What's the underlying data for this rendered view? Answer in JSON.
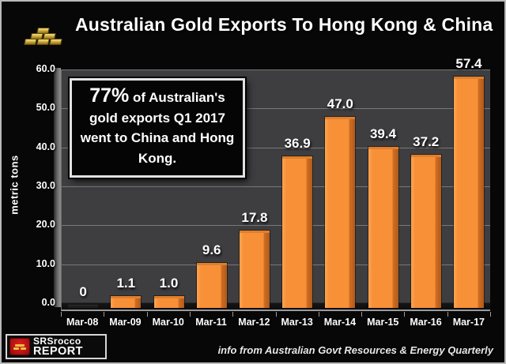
{
  "header": {
    "title": "Australian Gold Exports To Hong Kong & China"
  },
  "annotation": {
    "lead": "77%",
    "rest": " of Australian's gold exports Q1 2017 went to China and Hong Kong."
  },
  "chart_data": {
    "type": "bar",
    "title": "Australian Gold Exports To Hong Kong & China",
    "categories": [
      "Mar-08",
      "Mar-09",
      "Mar-10",
      "Mar-11",
      "Mar-12",
      "Mar-13",
      "Mar-14",
      "Mar-15",
      "Mar-16",
      "Mar-17"
    ],
    "values": [
      0,
      1.1,
      1.0,
      9.6,
      17.8,
      36.9,
      47.0,
      39.4,
      37.2,
      57.4
    ],
    "value_labels": [
      "0",
      "1.1",
      "1.0",
      "9.6",
      "17.8",
      "36.9",
      "47.0",
      "39.4",
      "37.2",
      "57.4"
    ],
    "xlabel": "",
    "ylabel": "metric tons",
    "ylim": [
      0,
      60
    ],
    "ytick_step": 10,
    "ytick_labels": [
      "0.0",
      "10.0",
      "20.0",
      "30.0",
      "40.0",
      "50.0",
      "60.0"
    ],
    "grid": true,
    "legend": "none",
    "style": "3d-column",
    "bar_color": "#F79038",
    "bar_shadow_color": "#B05A1B",
    "wall_color": "#3E3E40",
    "gridline_color": "#78787B",
    "background_color": "#070707",
    "label_color": "#FFFFFF"
  },
  "footer": {
    "logo_line1": "SRSrocco",
    "logo_line2": "REPORT",
    "credit": "info from Australian Govt Resources & Energy Quarterly"
  }
}
